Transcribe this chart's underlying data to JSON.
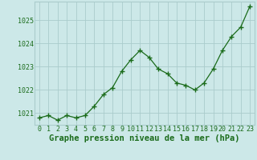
{
  "x": [
    0,
    1,
    2,
    3,
    4,
    5,
    6,
    7,
    8,
    9,
    10,
    11,
    12,
    13,
    14,
    15,
    16,
    17,
    18,
    19,
    20,
    21,
    22,
    23
  ],
  "y": [
    1020.8,
    1020.9,
    1020.7,
    1020.9,
    1020.8,
    1020.9,
    1021.3,
    1021.8,
    1022.1,
    1022.8,
    1023.3,
    1023.7,
    1023.4,
    1022.9,
    1022.7,
    1022.3,
    1022.2,
    1022.0,
    1022.3,
    1022.9,
    1023.7,
    1024.3,
    1024.7,
    1025.6
  ],
  "line_color": "#1a6b1a",
  "marker_color": "#1a6b1a",
  "bg_color": "#cce8e8",
  "grid_color": "#aacccc",
  "xlabel": "Graphe pression niveau de la mer (hPa)",
  "ylim": [
    1020.5,
    1025.8
  ],
  "yticks": [
    1021,
    1022,
    1023,
    1024,
    1025
  ],
  "ytick_labels": [
    "1021",
    "1022",
    "1023",
    "1024",
    "1025"
  ],
  "xticks": [
    0,
    1,
    2,
    3,
    4,
    5,
    6,
    7,
    8,
    9,
    10,
    11,
    12,
    13,
    14,
    15,
    16,
    17,
    18,
    19,
    20,
    21,
    22,
    23
  ],
  "xlabel_fontsize": 7.5,
  "tick_fontsize": 6.0,
  "line_color_hex": "#1a6b1a",
  "spine_color": "#aacccc"
}
